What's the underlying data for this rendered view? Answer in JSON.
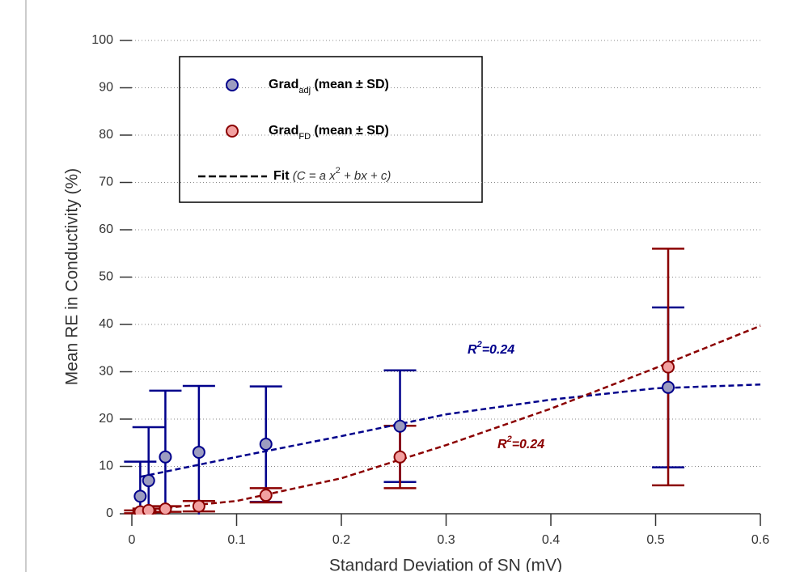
{
  "chart_data": {
    "type": "scatter",
    "x_label": "Standard Deviation of SN (mV)",
    "y_label": "Mean RE in Conductivity (%)",
    "xlim": [
      0,
      0.6
    ],
    "xticks": [
      0,
      0.1,
      0.2,
      0.3,
      0.4,
      0.5,
      0.6
    ],
    "ylim": [
      0,
      100
    ],
    "yticks": [
      0,
      10,
      20,
      30,
      40,
      50,
      60,
      70,
      80,
      90,
      100
    ],
    "grid": true,
    "series": [
      {
        "name": "Grad",
        "name_sub": "adj",
        "name_tail": " (mean ± SD)",
        "color": "#00008b",
        "marker_color": "#9c9cc0",
        "x": [
          0.008,
          0.016,
          0.032,
          0.064,
          0.128,
          0.256,
          0.512
        ],
        "values": [
          3.7,
          7,
          12,
          13,
          14.7,
          18.5,
          26.7
        ],
        "errors": [
          7.3,
          11.3,
          14,
          14,
          12.2,
          11.8,
          16.9
        ]
      },
      {
        "name": "Grad",
        "name_sub": "FD",
        "name_tail": " (mean ± SD)",
        "color": "#8b0000",
        "marker_color": "#f2a0a0",
        "x": [
          0.008,
          0.016,
          0.032,
          0.064,
          0.128,
          0.256,
          0.512
        ],
        "values": [
          0.4,
          0.7,
          1.0,
          1.6,
          3.9,
          12,
          31
        ],
        "errors": [
          0.3,
          0.4,
          0.6,
          1.1,
          1.5,
          6.6,
          25
        ]
      }
    ],
    "fits": [
      {
        "color": "#00008b",
        "x": [
          0.008,
          0.1,
          0.2,
          0.3,
          0.4,
          0.5,
          0.6
        ],
        "values": [
          7.8,
          12,
          16.4,
          21,
          24.1,
          26.5,
          27.3
        ]
      },
      {
        "color": "#8b0000",
        "x": [
          0.008,
          0.1,
          0.2,
          0.3,
          0.4,
          0.5,
          0.6
        ],
        "values": [
          0.7,
          2.7,
          7.5,
          14.5,
          22.2,
          30.8,
          39.7
        ]
      }
    ],
    "fit_label": {
      "bold": "Fit",
      "italic": " (C = a x",
      "sup": "2",
      "tail": " + bx + c)"
    },
    "annotations": [
      {
        "base": "R",
        "sup": "2",
        "tail": "=0.24",
        "color": "#00008b"
      },
      {
        "base": "R",
        "sup": "2",
        "tail": "=0.24",
        "color": "#8b0000"
      }
    ]
  }
}
